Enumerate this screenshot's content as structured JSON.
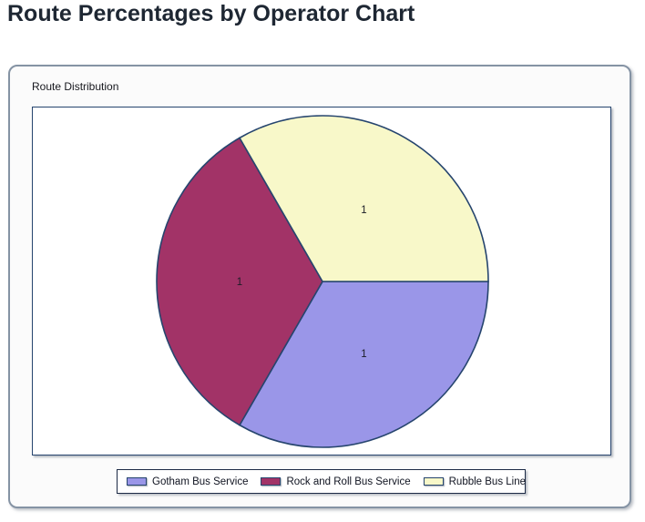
{
  "page": {
    "title": "Route Percentages by Operator Chart"
  },
  "panel": {
    "group_label": "Route Distribution"
  },
  "chart_data": {
    "type": "pie",
    "title": "Route Distribution",
    "legend_position": "bottom",
    "start_angle_deg": 0,
    "direction": "clockwise",
    "outline_color": "#26456e",
    "label_radius_ratio": 0.5,
    "slices": [
      {
        "label": "Gotham Bus Service",
        "value": 1,
        "display_label": "1",
        "color": "#9a96e8"
      },
      {
        "label": "Rock and Roll Bus Service",
        "value": 1,
        "display_label": "1",
        "color": "#a23367"
      },
      {
        "label": "Rubble Bus Line",
        "value": 1,
        "display_label": "1",
        "color": "#f8f8c9"
      }
    ]
  }
}
